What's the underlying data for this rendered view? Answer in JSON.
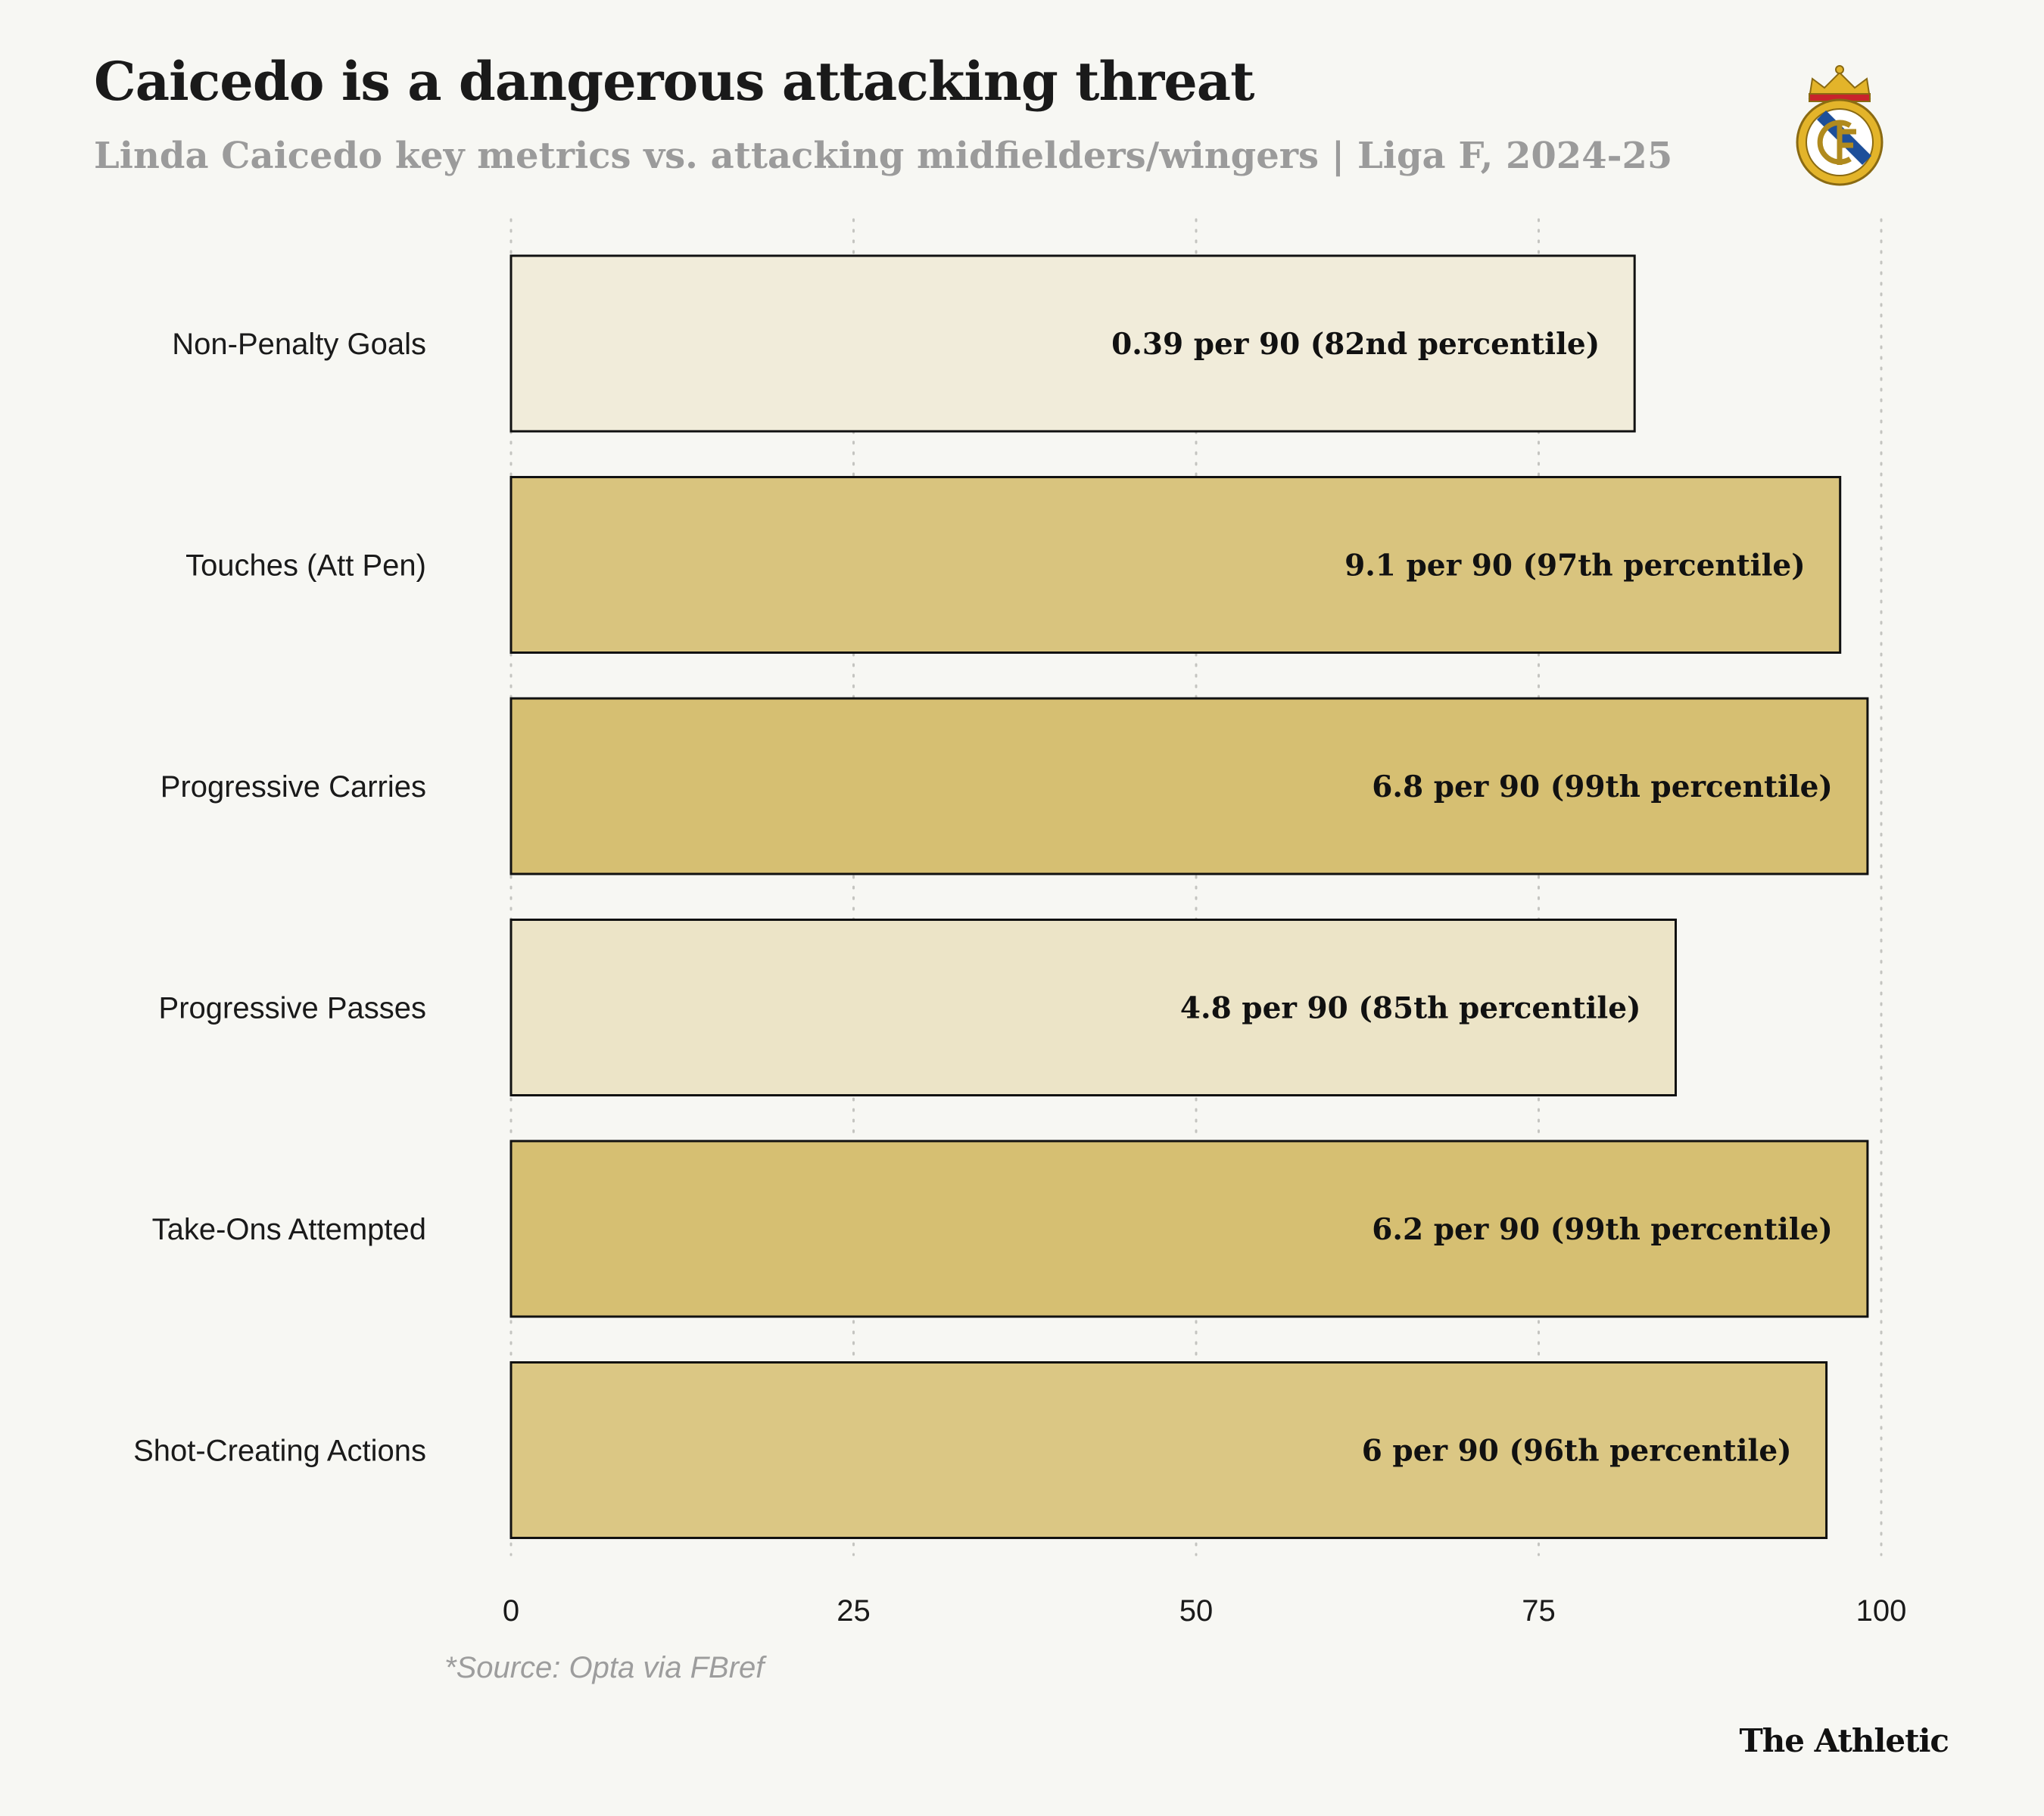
{
  "header": {
    "title": "Caicedo is a dangerous attacking threat",
    "subtitle": "Linda Caicedo key metrics vs. attacking midfielders/wingers | Liga F, 2024-25"
  },
  "logo": {
    "icon": "real-madrid-crest-icon",
    "colors": {
      "gold": "#e3b42a",
      "blue": "#1d4f9a",
      "red": "#c8242b"
    }
  },
  "chart_data": {
    "type": "bar",
    "orientation": "horizontal",
    "categories": [
      "Non-Penalty Goals",
      "Touches (Att Pen)",
      "Progressive Carries",
      "Progressive Passes",
      "Take-Ons Attempted",
      "Shot-Creating Actions"
    ],
    "values": [
      82,
      97,
      99,
      85,
      99,
      96
    ],
    "value_labels": [
      "0.39 per 90 (82nd percentile)",
      "9.1 per 90 (97th percentile)",
      "6.8 per 90 (99th percentile)",
      "4.8 per 90 (85th percentile)",
      "6.2 per 90 (99th percentile)",
      "6 per 90 (96th percentile)"
    ],
    "xlim": [
      0,
      100
    ],
    "xticks": [
      0,
      25,
      50,
      75,
      100
    ],
    "xtick_labels": [
      "0",
      "25",
      "50",
      "75",
      "100"
    ],
    "grid": "vertical dotted",
    "color_scale": {
      "low": "#f4f1e6",
      "high": "#d6bf72",
      "min_value": 80,
      "max_value": 99
    },
    "bar_outline": "#111111"
  },
  "footer": {
    "source": "*Source: Opta via FBref",
    "brand": "The Athletic"
  }
}
